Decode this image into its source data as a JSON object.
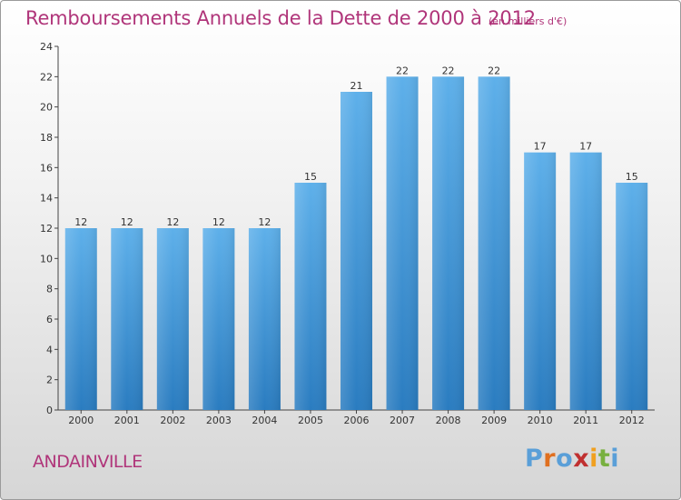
{
  "header": {
    "title": "Remboursements Annuels de la Dette de 2000 à 2012",
    "unit": "(en milliers d'€)"
  },
  "footer": {
    "commune": "ANDAINVILLE",
    "logo_text": "Proxiti"
  },
  "colors": {
    "title": "#b0357a",
    "bar_light": "#5eb0ea",
    "bar_dark": "#2a7cc0",
    "logo_letters": [
      "#5a9fd8",
      "#e07020",
      "#5a9fd8",
      "#c03030",
      "#f0a020",
      "#78b040",
      "#5a9fd8"
    ]
  },
  "chart_data": {
    "type": "bar",
    "categories": [
      "2000",
      "2001",
      "2002",
      "2003",
      "2004",
      "2005",
      "2006",
      "2007",
      "2008",
      "2009",
      "2010",
      "2011",
      "2012"
    ],
    "values": [
      12,
      12,
      12,
      12,
      12,
      15,
      21,
      22,
      22,
      22,
      17,
      17,
      15
    ],
    "title": "Remboursements Annuels de la Dette de 2000 à 2012",
    "ylim": [
      0,
      24
    ],
    "yticks": [
      0,
      2,
      4,
      6,
      8,
      10,
      12,
      14,
      16,
      18,
      20,
      22,
      24
    ],
    "grid": false,
    "legend": "none"
  }
}
